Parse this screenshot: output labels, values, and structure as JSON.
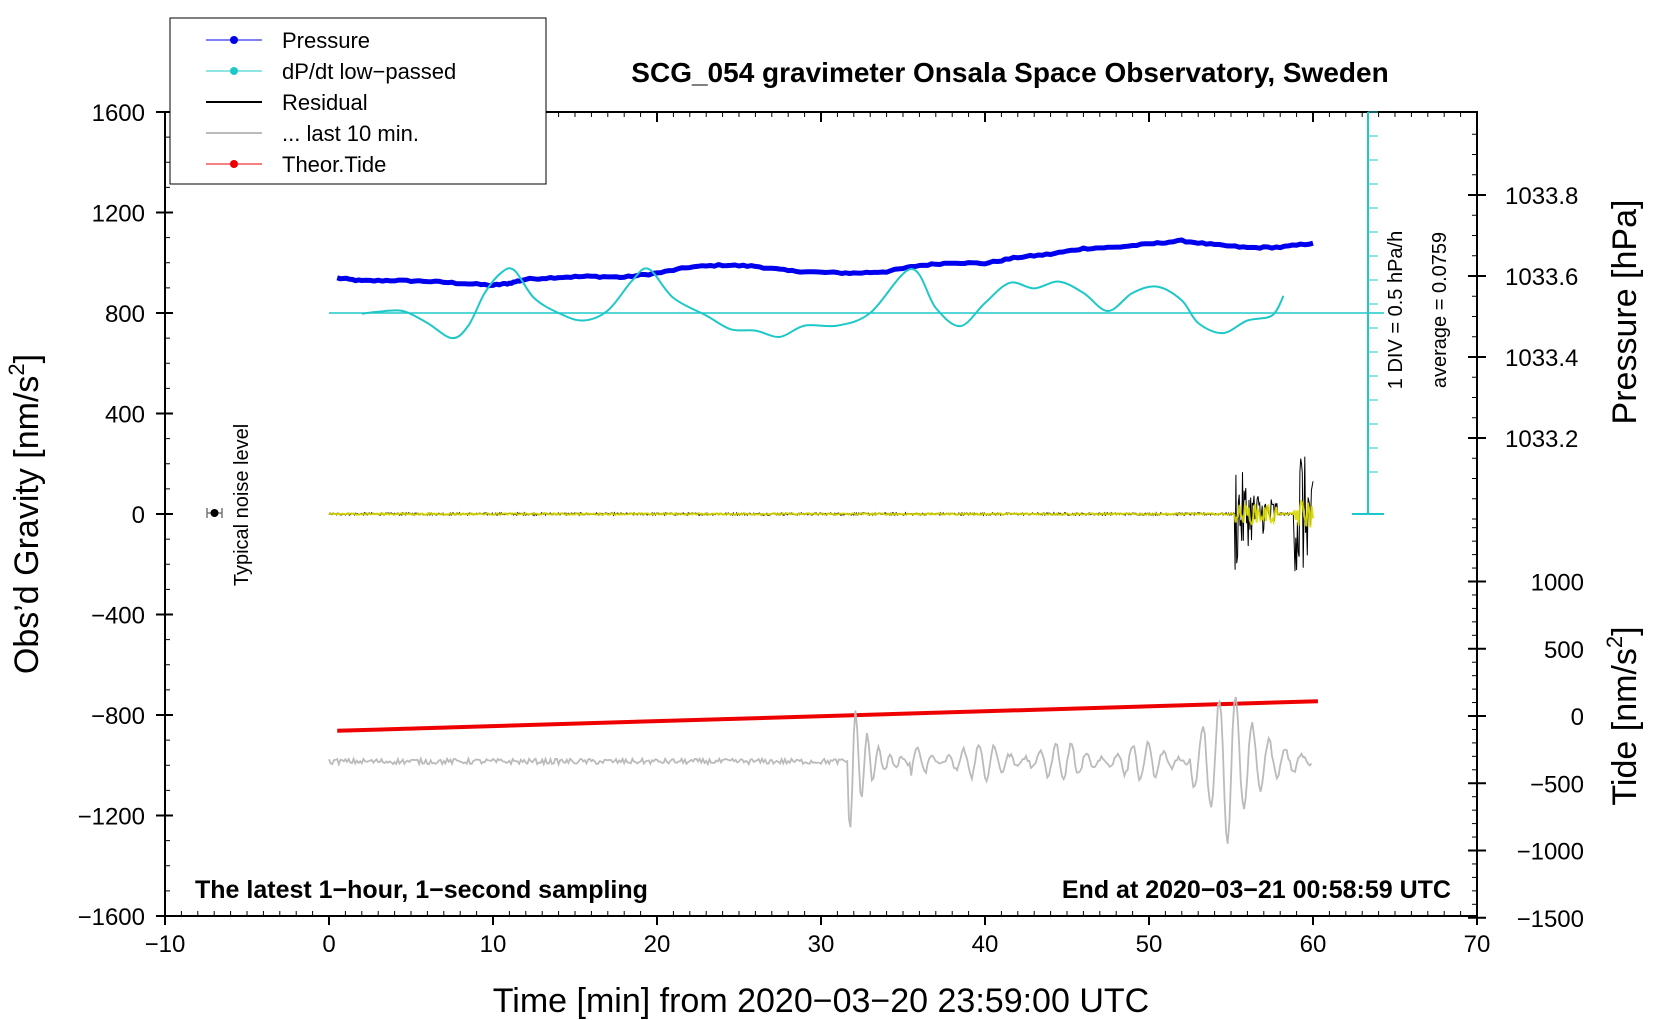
{
  "chart_data": {
    "type": "line",
    "title": "SCG_054 gravimeter Onsala Space Observatory, Sweden",
    "xlabel": "Time [min] from 2020−03−20 23:59:00 UTC",
    "ylabel_left": "Obs’d Gravity [nm/s",
    "ylabel_left_sup": "2",
    "ylabel_left_end": "]",
    "ylabel_right_pressure": "Pressure [hPa]",
    "ylabel_right_tide": "Tide [nm/s",
    "ylabel_right_tide_sup": "2",
    "ylabel_right_tide_end": "]",
    "xlim": [
      -10,
      70
    ],
    "ylim": [
      -1600,
      1600
    ],
    "x_ticks": [
      -10,
      0,
      10,
      20,
      30,
      40,
      50,
      60,
      70
    ],
    "x_tick_labels": [
      "−10",
      "0",
      "10",
      "20",
      "30",
      "40",
      "50",
      "60",
      "70"
    ],
    "y_ticks": [
      1600,
      1200,
      800,
      400,
      0,
      -400,
      -800,
      -1200,
      -1600
    ],
    "y_tick_labels": [
      "1600",
      "1200",
      "800",
      "400",
      "0",
      "−400",
      "−800",
      "−1200",
      "−1600"
    ],
    "pressure_axis": {
      "range": [
        1033.0,
        1033.99
      ],
      "ticks": [
        1033.8,
        1033.6,
        1033.4,
        1033.2
      ],
      "tick_labels": [
        "1033.8",
        "1033.6",
        "1033.4",
        "1033.2"
      ]
    },
    "tide_axis": {
      "range": [
        -1500,
        1500
      ],
      "ticks": [
        1000,
        500,
        0,
        -500,
        -1000,
        -1500
      ],
      "tick_labels": [
        "1000",
        "500",
        "0",
        "−500",
        "−1000",
        "−1500"
      ]
    },
    "legend": [
      {
        "label": "Pressure",
        "color": "#0000ee",
        "marker": true
      },
      {
        "label": "dP/dt low−passed",
        "color": "#1fc8c8",
        "marker": true
      },
      {
        "label": "Residual",
        "color": "#000000",
        "marker": false
      },
      {
        "label": "... last 10 min.",
        "color": "#bbbbbb",
        "marker": false
      },
      {
        "label": "Theor.Tide",
        "color": "#ee0000",
        "marker": true
      }
    ],
    "annotations": {
      "bottom_left": "The latest 1−hour, 1−second sampling",
      "bottom_right": "End at 2020−03−21 00:58:59 UTC",
      "noise_label": "Typical noise level",
      "div_label": "1 DIV = 0.5 hPa/h",
      "average_label": "average = 0.0759"
    },
    "series": [
      {
        "name": "Pressure",
        "axis": "pressure",
        "color": "#0000ee",
        "x": [
          0.5,
          2,
          4,
          6,
          8,
          10,
          11,
          12,
          14,
          16,
          18,
          20,
          22,
          24,
          26,
          28,
          30,
          32,
          34,
          36,
          38,
          40,
          42,
          44,
          46,
          48,
          50,
          52,
          54,
          56,
          58,
          60
        ],
        "values": [
          1033.595,
          1033.588,
          1033.589,
          1033.587,
          1033.582,
          1033.577,
          1033.582,
          1033.592,
          1033.597,
          1033.599,
          1033.597,
          1033.607,
          1033.622,
          1033.627,
          1033.624,
          1033.613,
          1033.609,
          1033.607,
          1033.611,
          1033.626,
          1033.633,
          1033.631,
          1033.646,
          1033.654,
          1033.668,
          1033.671,
          1033.679,
          1033.687,
          1033.677,
          1033.67,
          1033.671,
          1033.681
        ]
      },
      {
        "name": "dP/dt low-passed",
        "axis": "left",
        "color": "#1fc8c8",
        "x": [
          2,
          3,
          4.5,
          6,
          7.5,
          8.5,
          9.5,
          10.5,
          11.3,
          12.5,
          14,
          15.5,
          17,
          18.5,
          19.5,
          21,
          23,
          24.5,
          26,
          27.5,
          29,
          31,
          33,
          35.5,
          37,
          38.5,
          40,
          41.5,
          43,
          44.5,
          46,
          47.5,
          49,
          50.5,
          52,
          53,
          54.5,
          56,
          57.5,
          58.2
        ],
        "values": [
          797,
          805,
          808,
          760,
          700,
          750,
          880,
          960,
          970,
          860,
          800,
          770,
          810,
          930,
          975,
          860,
          790,
          735,
          730,
          705,
          750,
          750,
          800,
          975,
          820,
          748,
          840,
          920,
          898,
          925,
          880,
          808,
          880,
          905,
          850,
          760,
          720,
          770,
          790,
          868
        ]
      },
      {
        "name": "Theor.Tide",
        "axis": "tide",
        "color": "#ee0000",
        "x": [
          0.5,
          60.3
        ],
        "values": [
          -110,
          110
        ]
      }
    ]
  }
}
